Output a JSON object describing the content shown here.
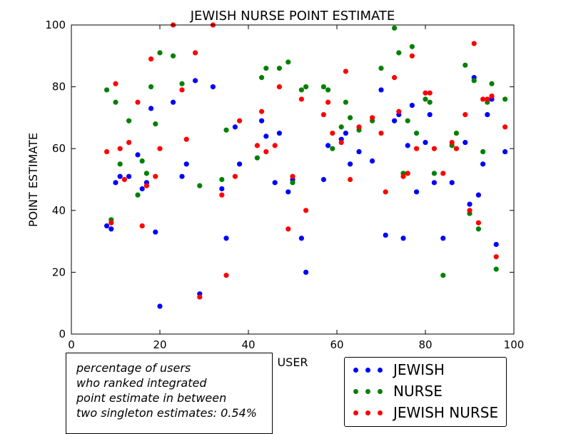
{
  "chart_data": {
    "type": "scatter",
    "title": "JEWISH NURSE POINT ESTIMATE",
    "xlabel": "USER",
    "ylabel": "POINT ESTIMATE",
    "xlim": [
      0,
      100
    ],
    "ylim": [
      0,
      100
    ],
    "xticks": [
      0,
      20,
      40,
      60,
      80,
      100
    ],
    "yticks": [
      0,
      20,
      40,
      60,
      80,
      100
    ],
    "grid": false,
    "legend_position": "bottom-right",
    "series": [
      {
        "name": "JEWISH",
        "color": "#0000ff",
        "points": [
          [
            8,
            35
          ],
          [
            9,
            34
          ],
          [
            10,
            49
          ],
          [
            11,
            51
          ],
          [
            13,
            51
          ],
          [
            15,
            58
          ],
          [
            16,
            47
          ],
          [
            17,
            49
          ],
          [
            18,
            73
          ],
          [
            19,
            33
          ],
          [
            20,
            9
          ],
          [
            23,
            75
          ],
          [
            25,
            51
          ],
          [
            26,
            55
          ],
          [
            28,
            82
          ],
          [
            29,
            13
          ],
          [
            32,
            80
          ],
          [
            34,
            47
          ],
          [
            35,
            31
          ],
          [
            37,
            67
          ],
          [
            38,
            55
          ],
          [
            43,
            69
          ],
          [
            44,
            64
          ],
          [
            46,
            49
          ],
          [
            47,
            65
          ],
          [
            49,
            46
          ],
          [
            50,
            50
          ],
          [
            52,
            31
          ],
          [
            53,
            20
          ],
          [
            57,
            50
          ],
          [
            58,
            61
          ],
          [
            61,
            63
          ],
          [
            62,
            65
          ],
          [
            63,
            55
          ],
          [
            65,
            59
          ],
          [
            68,
            56
          ],
          [
            70,
            79
          ],
          [
            71,
            32
          ],
          [
            73,
            69
          ],
          [
            74,
            71
          ],
          [
            75,
            31
          ],
          [
            76,
            61
          ],
          [
            77,
            74
          ],
          [
            78,
            46
          ],
          [
            80,
            62
          ],
          [
            81,
            71
          ],
          [
            82,
            49
          ],
          [
            84,
            31
          ],
          [
            86,
            49
          ],
          [
            89,
            62
          ],
          [
            90,
            42
          ],
          [
            91,
            83
          ],
          [
            92,
            45
          ],
          [
            93,
            55
          ],
          [
            94,
            71
          ],
          [
            95,
            76
          ],
          [
            96,
            29
          ],
          [
            98,
            59
          ]
        ]
      },
      {
        "name": "NURSE",
        "color": "#008000",
        "points": [
          [
            8,
            79
          ],
          [
            9,
            37
          ],
          [
            10,
            75
          ],
          [
            11,
            55
          ],
          [
            13,
            69
          ],
          [
            15,
            45
          ],
          [
            16,
            56
          ],
          [
            17,
            52
          ],
          [
            18,
            80
          ],
          [
            19,
            68
          ],
          [
            20,
            91
          ],
          [
            23,
            90
          ],
          [
            25,
            81
          ],
          [
            29,
            48
          ],
          [
            34,
            50
          ],
          [
            35,
            66
          ],
          [
            42,
            57
          ],
          [
            43,
            83
          ],
          [
            44,
            86
          ],
          [
            47,
            86
          ],
          [
            49,
            88
          ],
          [
            50,
            49
          ],
          [
            52,
            79
          ],
          [
            53,
            80
          ],
          [
            57,
            80
          ],
          [
            58,
            79
          ],
          [
            59,
            60
          ],
          [
            61,
            67
          ],
          [
            62,
            75
          ],
          [
            63,
            70
          ],
          [
            65,
            66
          ],
          [
            68,
            69
          ],
          [
            70,
            86
          ],
          [
            73,
            99
          ],
          [
            74,
            91
          ],
          [
            75,
            52
          ],
          [
            76,
            69
          ],
          [
            77,
            93
          ],
          [
            78,
            65
          ],
          [
            80,
            76
          ],
          [
            81,
            75
          ],
          [
            82,
            52
          ],
          [
            84,
            19
          ],
          [
            86,
            61
          ],
          [
            87,
            65
          ],
          [
            89,
            87
          ],
          [
            90,
            39
          ],
          [
            91,
            82
          ],
          [
            92,
            34
          ],
          [
            93,
            59
          ],
          [
            94,
            75
          ],
          [
            95,
            81
          ],
          [
            96,
            21
          ],
          [
            98,
            76
          ]
        ]
      },
      {
        "name": "JEWISH NURSE",
        "color": "#ff0000",
        "points": [
          [
            8,
            59
          ],
          [
            9,
            36
          ],
          [
            10,
            81
          ],
          [
            11,
            60
          ],
          [
            12,
            50
          ],
          [
            13,
            62
          ],
          [
            15,
            75
          ],
          [
            16,
            35
          ],
          [
            17,
            48
          ],
          [
            18,
            89
          ],
          [
            19,
            51
          ],
          [
            20,
            60
          ],
          [
            23,
            100
          ],
          [
            25,
            79
          ],
          [
            26,
            63
          ],
          [
            28,
            91
          ],
          [
            29,
            12
          ],
          [
            32,
            100
          ],
          [
            34,
            45
          ],
          [
            35,
            19
          ],
          [
            37,
            51
          ],
          [
            38,
            69
          ],
          [
            42,
            61
          ],
          [
            43,
            72
          ],
          [
            44,
            59
          ],
          [
            46,
            61
          ],
          [
            47,
            80
          ],
          [
            49,
            34
          ],
          [
            50,
            51
          ],
          [
            52,
            76
          ],
          [
            53,
            40
          ],
          [
            57,
            71
          ],
          [
            58,
            75
          ],
          [
            59,
            65
          ],
          [
            61,
            62
          ],
          [
            62,
            85
          ],
          [
            63,
            50
          ],
          [
            65,
            67
          ],
          [
            68,
            70
          ],
          [
            70,
            65
          ],
          [
            71,
            46
          ],
          [
            73,
            83
          ],
          [
            74,
            72
          ],
          [
            75,
            51
          ],
          [
            76,
            52
          ],
          [
            77,
            90
          ],
          [
            78,
            60
          ],
          [
            80,
            78
          ],
          [
            81,
            78
          ],
          [
            82,
            60
          ],
          [
            84,
            52
          ],
          [
            86,
            62
          ],
          [
            87,
            60
          ],
          [
            89,
            71
          ],
          [
            90,
            40
          ],
          [
            91,
            94
          ],
          [
            92,
            36
          ],
          [
            93,
            76
          ],
          [
            94,
            76
          ],
          [
            95,
            77
          ],
          [
            96,
            25
          ],
          [
            98,
            67
          ]
        ]
      }
    ]
  },
  "annotation": {
    "lines": [
      "percentage of users",
      "who ranked integrated",
      "point estimate in between",
      "two singleton estimates: 0.54%"
    ]
  }
}
